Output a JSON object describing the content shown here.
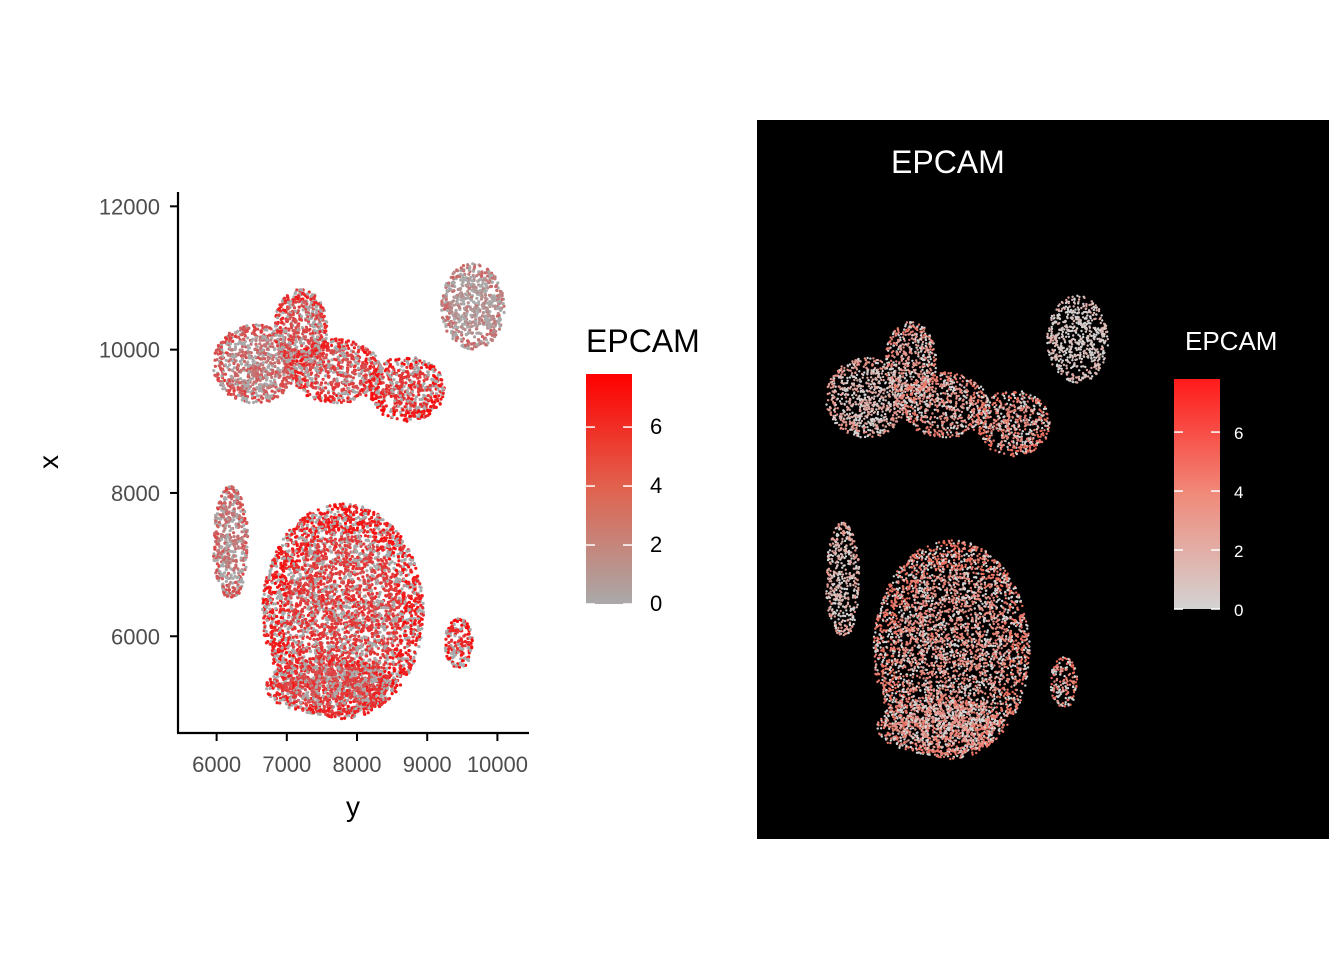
{
  "chart_data": [
    {
      "type": "scatter",
      "panel": "left",
      "title": "",
      "xlabel": "y",
      "ylabel": "x",
      "xlim": [
        5450,
        10450
      ],
      "ylim": [
        4650,
        12200
      ],
      "x_ticks": [
        6000,
        7000,
        8000,
        9000,
        10000
      ],
      "x_tick_labels": [
        "6000",
        "7000",
        "8000",
        "9000",
        "10000"
      ],
      "y_ticks": [
        6000,
        8000,
        10000,
        12000
      ],
      "y_tick_labels": [
        "6000",
        "8000",
        "10000",
        "12000"
      ],
      "grid": false,
      "legend": {
        "title": "EPCAM",
        "placement": "right",
        "range": [
          0,
          7.8
        ],
        "ticks": [
          0,
          2,
          4,
          6
        ],
        "tick_labels": [
          "0",
          "2",
          "4",
          "6"
        ],
        "low_color": "#a9a9a9",
        "high_color": "#ff0000"
      },
      "regions": [
        {
          "name": "upper-left",
          "cx": 6550,
          "cy": 9800,
          "rx": 600,
          "ry": 550,
          "expr": 2.5
        },
        {
          "name": "upper-mid-arm",
          "cx": 7200,
          "cy": 10300,
          "rx": 380,
          "ry": 550,
          "expr": 3.8
        },
        {
          "name": "upper-center",
          "cx": 7700,
          "cy": 9700,
          "rx": 650,
          "ry": 450,
          "expr": 4.2
        },
        {
          "name": "upper-right-band",
          "cx": 8700,
          "cy": 9450,
          "rx": 550,
          "ry": 450,
          "expr": 4.8
        },
        {
          "name": "upper-right-tail",
          "cx": 9650,
          "cy": 10600,
          "rx": 450,
          "ry": 600,
          "expr": 1.0
        },
        {
          "name": "lower-left-strip",
          "cx": 6200,
          "cy": 7300,
          "rx": 250,
          "ry": 800,
          "expr": 2.2
        },
        {
          "name": "lower-main",
          "cx": 7800,
          "cy": 6350,
          "rx": 1150,
          "ry": 1500,
          "expr": 4.5
        },
        {
          "name": "lower-bottom",
          "cx": 7600,
          "cy": 5300,
          "rx": 900,
          "ry": 400,
          "expr": 4.0
        },
        {
          "name": "lower-right-islands",
          "cx": 9450,
          "cy": 5900,
          "rx": 200,
          "ry": 350,
          "expr": 5.0
        }
      ]
    },
    {
      "type": "scatter",
      "panel": "right",
      "title": "EPCAM",
      "xlabel": "",
      "ylabel": "",
      "background": "#000000",
      "legend": {
        "title": "EPCAM",
        "placement": "right",
        "range": [
          0,
          7.8
        ],
        "ticks": [
          0,
          2,
          4,
          6
        ],
        "tick_labels": [
          "0",
          "2",
          "4",
          "6"
        ],
        "low_color": "#d3d3d3",
        "high_color": "#ff1a1a"
      }
    }
  ]
}
